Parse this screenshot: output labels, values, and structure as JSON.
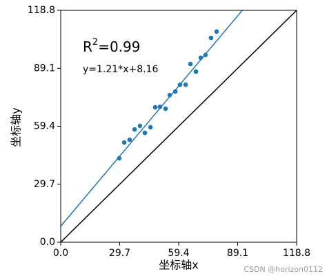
{
  "chart_data": {
    "type": "scatter",
    "x_label": "坐标轴x",
    "y_label": "坐标轴y",
    "xlim": [
      0,
      118.8
    ],
    "ylim": [
      0,
      118.8
    ],
    "xticks": [
      {
        "value": 0,
        "label": "0.0"
      },
      29.7,
      59.4,
      89.1,
      118.8
    ],
    "yticks": [
      {
        "value": 0,
        "label": "0.0"
      },
      29.7,
      59.4,
      89.1,
      118.8
    ],
    "series": [
      {
        "color": "#1f77b4",
        "x": [
          29.5,
          32.0,
          34.7,
          37.2,
          39.9,
          42.4,
          45.2,
          47.6,
          50.0,
          52.8,
          54.9,
          57.7,
          60.1,
          62.9,
          65.3,
          68.1,
          70.5,
          72.9,
          75.7,
          78.5
        ],
        "values": [
          43.0,
          51.1,
          52.5,
          57.8,
          59.6,
          56.0,
          58.9,
          69.1,
          69.4,
          68.4,
          75.4,
          77.2,
          80.7,
          80.7,
          91.3,
          87.4,
          94.5,
          95.9,
          104.7,
          107.9
        ]
      }
    ],
    "fit": {
      "slope": 1.21,
      "intercept": 8.16,
      "label": "y=1.21*x+8.16",
      "color": "#1f77b4"
    },
    "r2": {
      "base": "R",
      "sup": "2",
      "text": "=0.99"
    },
    "diagonal": {
      "color": "#000000"
    },
    "watermark": "CSDN @horizon0112"
  }
}
